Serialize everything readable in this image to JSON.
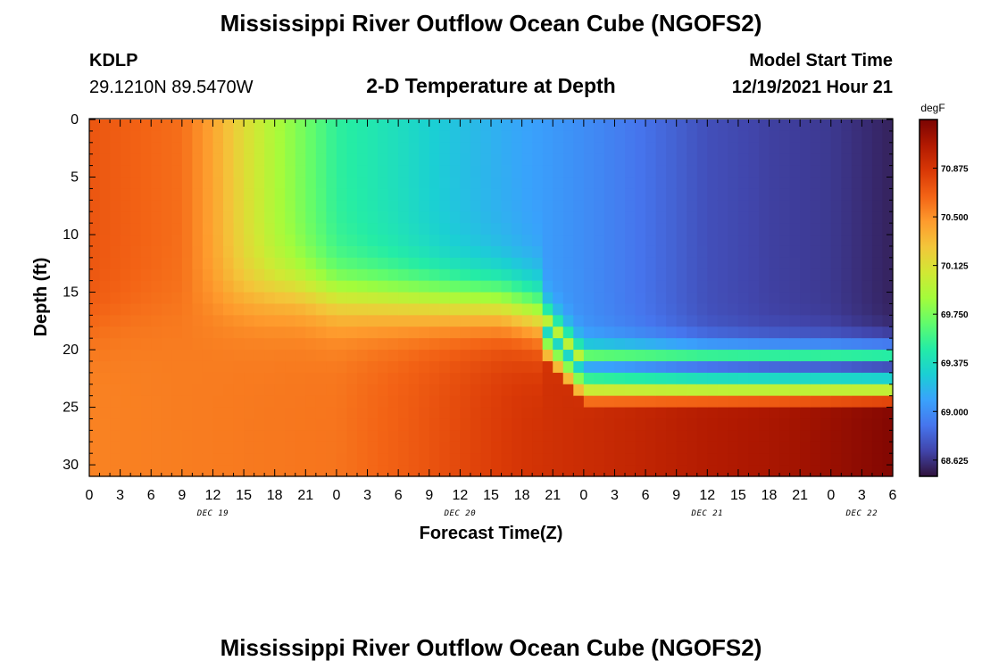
{
  "page": {
    "title": "Mississippi River Outflow Ocean Cube (NGOFS2)",
    "footer_title": "Mississippi River Outflow Ocean Cube (NGOFS2)"
  },
  "station": {
    "id": "KDLP",
    "coords": "29.1210N  89.5470W"
  },
  "model": {
    "label": "Model Start Time",
    "start": "12/19/2021 Hour 21"
  },
  "chart_data": {
    "type": "heatmap",
    "title": "2-D Temperature at Depth",
    "xlabel": "Forecast Time(Z)",
    "ylabel": "Depth (ft)",
    "x_tick_labels": [
      "0",
      "3",
      "6",
      "9",
      "12",
      "15",
      "18",
      "21",
      "0",
      "3",
      "6",
      "9",
      "12",
      "15",
      "18",
      "21",
      "0",
      "3",
      "6",
      "9",
      "12",
      "15",
      "18",
      "21",
      "0",
      "3",
      "6"
    ],
    "x_range_hours": [
      0,
      78
    ],
    "day_labels": [
      {
        "text": "DEC 19",
        "hour": 12
      },
      {
        "text": "DEC 20",
        "hour": 36
      },
      {
        "text": "DEC 21",
        "hour": 60
      },
      {
        "text": "DEC 22",
        "hour": 75
      }
    ],
    "y_ticks": [
      0,
      5,
      10,
      15,
      20,
      25,
      30
    ],
    "ylim": [
      0,
      31
    ],
    "y_reversed": true,
    "colorbar": {
      "unit": "degF",
      "min": 68.5,
      "max": 71.25,
      "ticks": [
        "68.625",
        "69.000",
        "69.375",
        "69.750",
        "70.125",
        "70.500",
        "70.875"
      ],
      "colors": [
        "#30123b",
        "#4145ab",
        "#4675ed",
        "#39a2fc",
        "#1bcfd4",
        "#24eca6",
        "#61fc6c",
        "#a4fc3b",
        "#d1e834",
        "#f3c63a",
        "#fe9b2d",
        "#f36315",
        "#d93806",
        "#b11901",
        "#7a0402"
      ]
    },
    "grid": {
      "time_step_hours": 1,
      "depth_step_ft": 1,
      "hours": 78,
      "depth_levels": 31
    }
  }
}
